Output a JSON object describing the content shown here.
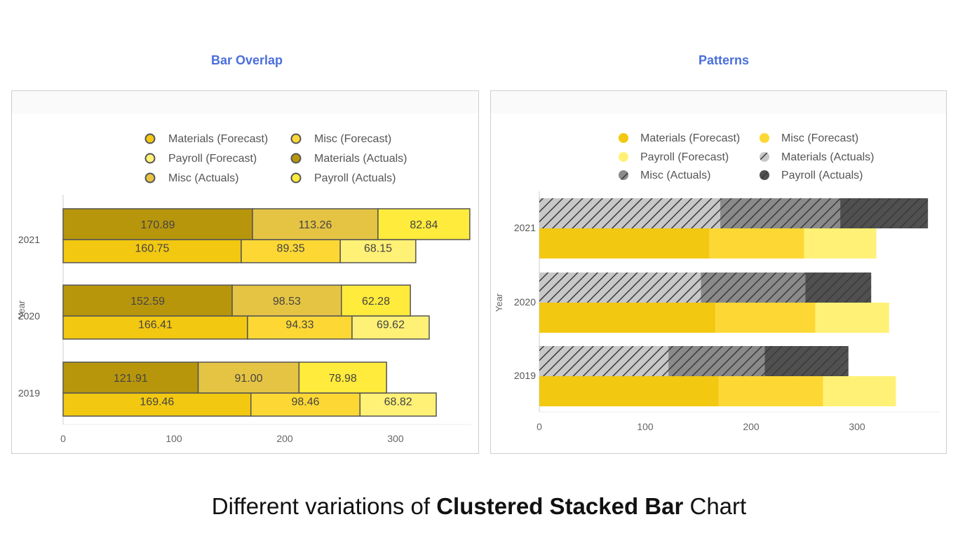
{
  "panels": {
    "left_title": "Bar Overlap",
    "right_title": "Patterns"
  },
  "caption": {
    "prefix": "Different variations of ",
    "bold": "Clustered Stacked Bar",
    "suffix": " Chart"
  },
  "colors": {
    "materials_forecast": "#f2c811",
    "misc_forecast": "#fdd835",
    "payroll_forecast": "#fff176",
    "materials_actuals": "#b8960c",
    "misc_actuals": "#e6c443",
    "payroll_actuals": "#ffeb3b",
    "pattern_light": "#c8c8c8",
    "pattern_mid": "#8a8a8a",
    "pattern_dark": "#505050",
    "title_blue": "#4a6fdc"
  },
  "chart_data": [
    {
      "type": "bar",
      "orientation": "horizontal",
      "stacked": true,
      "clustered": true,
      "style": "overlap",
      "title": "Bar Overlap",
      "ylabel": "Year",
      "categories": [
        "2021",
        "2020",
        "2019"
      ],
      "xlim": [
        0,
        370
      ],
      "xticks": [
        0,
        100,
        200,
        300
      ],
      "legend_placement": "top",
      "series": [
        {
          "name": "Materials (Forecast)",
          "group": "forecast",
          "values": [
            160.75,
            166.41,
            169.46
          ]
        },
        {
          "name": "Misc (Forecast)",
          "group": "forecast",
          "values": [
            89.35,
            94.33,
            98.46
          ]
        },
        {
          "name": "Payroll (Forecast)",
          "group": "forecast",
          "values": [
            68.15,
            69.62,
            68.82
          ]
        },
        {
          "name": "Materials (Actuals)",
          "group": "actuals",
          "values": [
            170.89,
            152.59,
            121.91
          ]
        },
        {
          "name": "Misc (Actuals)",
          "group": "actuals",
          "values": [
            113.26,
            98.53,
            91.0
          ]
        },
        {
          "name": "Payroll (Actuals)",
          "group": "actuals",
          "values": [
            82.84,
            62.28,
            78.98
          ]
        }
      ],
      "legend_order": [
        "Materials (Forecast)",
        "Misc (Forecast)",
        "Payroll (Forecast)",
        "Materials (Actuals)",
        "Misc (Actuals)",
        "Payroll (Actuals)"
      ],
      "data_labels_shown": true,
      "value_labels": [
        [
          "170.89",
          "113.26",
          "82.84",
          "160.75",
          "89.35",
          "68.15"
        ],
        [
          "152.59",
          "98.53",
          "62.28",
          "166.41",
          "94.33",
          "69.62"
        ],
        [
          "121.91",
          "91.00",
          "78.98",
          "169.46",
          "98.46",
          "68.82"
        ]
      ]
    },
    {
      "type": "bar",
      "orientation": "horizontal",
      "stacked": true,
      "clustered": true,
      "style": "patterns",
      "title": "Patterns",
      "ylabel": "Year",
      "categories": [
        "2021",
        "2020",
        "2019"
      ],
      "xlim": [
        0,
        370
      ],
      "xticks": [
        0,
        100,
        200,
        300
      ],
      "legend_placement": "top",
      "series": [
        {
          "name": "Materials (Forecast)",
          "group": "forecast",
          "values": [
            160.75,
            166.41,
            169.46
          ]
        },
        {
          "name": "Misc (Forecast)",
          "group": "forecast",
          "values": [
            89.35,
            94.33,
            98.46
          ]
        },
        {
          "name": "Payroll (Forecast)",
          "group": "forecast",
          "values": [
            68.15,
            69.62,
            68.82
          ]
        },
        {
          "name": "Materials (Actuals)",
          "group": "actuals",
          "values": [
            170.89,
            152.59,
            121.91
          ]
        },
        {
          "name": "Misc (Actuals)",
          "group": "actuals",
          "values": [
            113.26,
            98.53,
            91.0
          ]
        },
        {
          "name": "Payroll (Actuals)",
          "group": "actuals",
          "values": [
            82.84,
            62.28,
            78.98
          ]
        }
      ],
      "legend_order": [
        "Materials (Forecast)",
        "Misc (Forecast)",
        "Payroll (Forecast)",
        "Materials (Actuals)",
        "Misc (Actuals)",
        "Payroll (Actuals)"
      ],
      "data_labels_shown": false
    }
  ]
}
